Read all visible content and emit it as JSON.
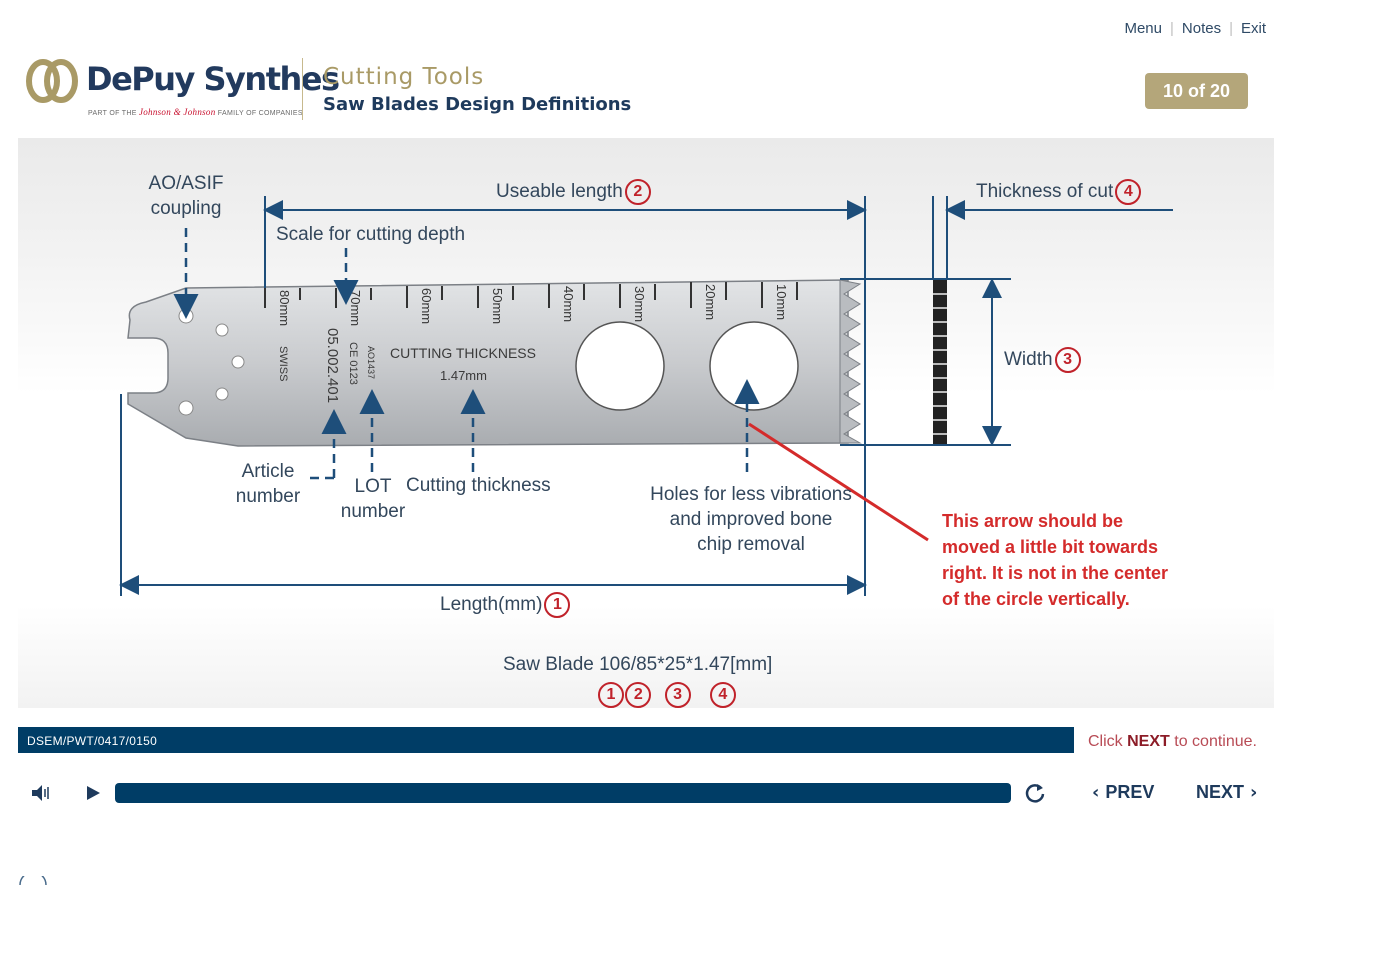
{
  "top_nav": {
    "menu": "Menu",
    "notes": "Notes",
    "exit": "Exit"
  },
  "brand": {
    "name": "DePuy Synthes",
    "tagline_pre": "PART OF THE",
    "tagline_jj": "Johnson & Johnson",
    "tagline_post": "FAMILY OF COMPANIES"
  },
  "course": {
    "title": "Cutting Tools",
    "page_title": "Saw Blades Design Definitions"
  },
  "counter": "10 of 20",
  "diagram": {
    "labels": {
      "coupling": [
        "AO/ASIF",
        "coupling"
      ],
      "useable_length": "Useable length",
      "scale": "Scale for cutting depth",
      "thickness_of_cut": "Thickness of cut",
      "width": "Width",
      "article_number": [
        "Article",
        "number"
      ],
      "lot_number": [
        "LOT",
        "number"
      ],
      "cutting_thickness": "Cutting thickness",
      "holes": [
        "Holes for less vibrations",
        "and improved bone",
        "chip removal"
      ],
      "length": "Length(mm)",
      "saw_blade": "Saw Blade 106/85*25*1.47[mm]"
    },
    "blade_text": {
      "swiss": "SWISS",
      "article": "05.002.401",
      "ce": "CE 0123",
      "lot": "AO1437",
      "cutting_title": "CUTTING THICKNESS",
      "cutting_value": "1.47mm",
      "scale_marks": [
        "80mm",
        "70mm",
        "60mm",
        "50mm",
        "40mm",
        "30mm",
        "20mm",
        "10mm"
      ]
    },
    "circle_numbers": {
      "one": "1",
      "two": "2",
      "three": "3",
      "four": "4"
    },
    "review_note": "This arrow should be moved a little bit towards right. It is not in the center of the circle vertically."
  },
  "footer_code": "DSEM/PWT/0417/0150",
  "continue": {
    "pre": "Click",
    "next": "NEXT",
    "post": "to continue."
  },
  "controls": {
    "prev": "PREV",
    "next": "NEXT",
    "audio_icon": "speaker-icon",
    "play_icon": "play-icon",
    "replay_icon": "replay-icon"
  },
  "colors": {
    "navy": "#003d66",
    "gold": "#b4a67a",
    "red": "#c0222a"
  }
}
